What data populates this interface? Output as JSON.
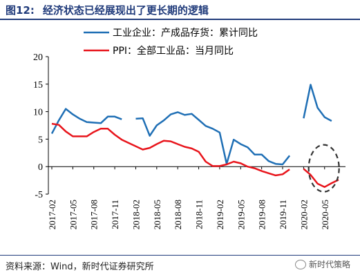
{
  "figure": {
    "number": "图12:",
    "title": "经济状态已经展现出了更长期的逻辑",
    "source": "资料来源：Wind，新时代证券研究所",
    "watermark": "新时代策略"
  },
  "colors": {
    "series1": "#1f6fb5",
    "series2": "#e8141b",
    "axis": "#000000",
    "highlight": "#333333"
  },
  "chart_data": {
    "type": "line",
    "ylim": [
      -5,
      20
    ],
    "yticks": [
      -5,
      0,
      5,
      10,
      15,
      20
    ],
    "x": [
      "2017-02",
      "2017-03",
      "2017-04",
      "2017-05",
      "2017-06",
      "2017-07",
      "2017-08",
      "2017-09",
      "2017-10",
      "2017-11",
      "2017-12",
      "2018-01",
      "2018-02",
      "2018-03",
      "2018-04",
      "2018-05",
      "2018-06",
      "2018-07",
      "2018-08",
      "2018-09",
      "2018-10",
      "2018-11",
      "2018-12",
      "2019-01",
      "2019-02",
      "2019-03",
      "2019-04",
      "2019-05",
      "2019-06",
      "2019-07",
      "2019-08",
      "2019-09",
      "2019-10",
      "2019-11",
      "2019-12",
      "2020-01",
      "2020-02",
      "2020-03",
      "2020-04",
      "2020-05",
      "2020-06",
      "2020-07"
    ],
    "xtick_labels": [
      "2017-02",
      "2017-05",
      "2017-08",
      "2017-11",
      "2018-02",
      "2018-05",
      "2018-08",
      "2018-11",
      "2019-02",
      "2019-05",
      "2019-08",
      "2019-11",
      "2020-02",
      "2020-05"
    ],
    "legend_position": "top-center",
    "series": [
      {
        "name": "工业企业：产成品存货：累计同比",
        "values": [
          6.0,
          8.4,
          10.5,
          9.5,
          8.7,
          8.1,
          8.0,
          7.9,
          9.1,
          9.1,
          8.6,
          null,
          8.7,
          8.8,
          5.6,
          7.5,
          8.4,
          9.5,
          9.9,
          9.4,
          9.6,
          8.5,
          7.4,
          6.9,
          6.2,
          0.5,
          4.9,
          4.1,
          3.5,
          2.2,
          2.2,
          1.0,
          0.5,
          0.4,
          2.0,
          null,
          8.8,
          14.9,
          10.7,
          9.0,
          8.3,
          null
        ]
      },
      {
        "name": "PPI：全部工业品：当月同比",
        "values": [
          7.8,
          7.6,
          6.4,
          5.5,
          5.5,
          5.5,
          6.3,
          6.9,
          6.9,
          5.8,
          4.9,
          4.3,
          3.7,
          3.1,
          3.4,
          4.1,
          4.7,
          4.6,
          4.1,
          3.6,
          3.3,
          2.7,
          0.9,
          0.1,
          0.1,
          0.4,
          0.9,
          0.6,
          0.0,
          -0.3,
          -0.8,
          -1.2,
          -1.6,
          -1.4,
          -0.5,
          null,
          -0.4,
          -1.5,
          -3.1,
          -3.7,
          -3.0,
          -2.4
        ]
      }
    ]
  }
}
